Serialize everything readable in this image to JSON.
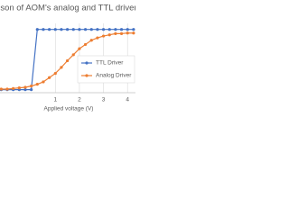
{
  "chart_data": {
    "type": "line",
    "title": "Comparison of AOM's analog and TTL driver",
    "x_label": "Applied voltage (V)",
    "x": [
      -1.25,
      -1,
      -0.75,
      -0.5,
      -0.25,
      0,
      0.25,
      0.5,
      0.75,
      1,
      1.25,
      1.5,
      1.75,
      2,
      2.25,
      2.5,
      2.75,
      3,
      3.25,
      3.5,
      3.75,
      4,
      4.25
    ],
    "series": [
      {
        "name": "TTL Driver",
        "color": "#4472c4",
        "values": [
          0,
          0,
          0,
          0,
          0,
          0,
          1,
          1,
          1,
          1,
          1,
          1,
          1,
          1,
          1,
          1,
          1,
          1,
          1,
          1,
          1,
          1,
          1
        ]
      },
      {
        "name": "Analog Driver",
        "color": "#ed7d31",
        "values": [
          0.01,
          0.01,
          0.02,
          0.03,
          0.04,
          0.06,
          0.09,
          0.13,
          0.2,
          0.27,
          0.37,
          0.48,
          0.58,
          0.68,
          0.75,
          0.82,
          0.86,
          0.89,
          0.91,
          0.93,
          0.93,
          0.94,
          0.94
        ]
      }
    ],
    "xlim": [
      -1.3,
      4.33
    ],
    "xticks": [
      1,
      2,
      3,
      4
    ],
    "ylim": [
      -0.05,
      1.1
    ],
    "grid": true,
    "legend": "right"
  }
}
